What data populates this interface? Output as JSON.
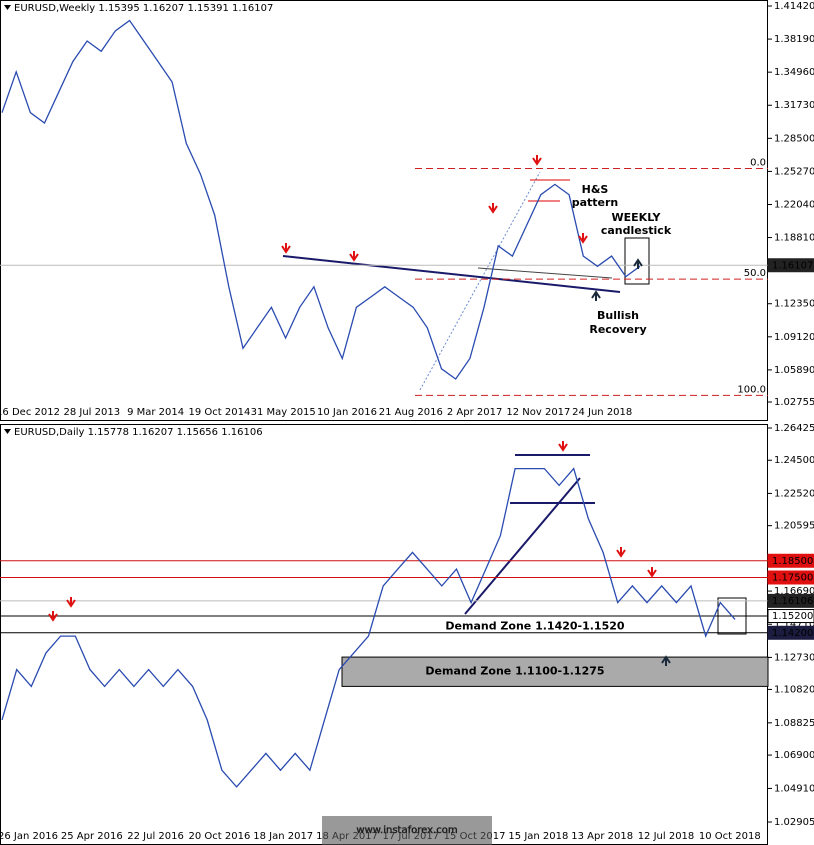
{
  "chart_data": [
    {
      "type": "line",
      "title": "EURUSD,Weekly  1.15395 1.16207 1.15391 1.16107",
      "series": [
        {
          "name": "EURUSD Weekly",
          "color": "#2a4bb0",
          "values": [
            1.31,
            1.35,
            1.31,
            1.3,
            1.33,
            1.36,
            1.38,
            1.37,
            1.39,
            1.4,
            1.38,
            1.36,
            1.34,
            1.28,
            1.25,
            1.21,
            1.14,
            1.08,
            1.1,
            1.12,
            1.09,
            1.12,
            1.14,
            1.1,
            1.07,
            1.12,
            1.13,
            1.14,
            1.13,
            1.12,
            1.1,
            1.06,
            1.05,
            1.07,
            1.12,
            1.18,
            1.17,
            1.2,
            1.23,
            1.24,
            1.23,
            1.17,
            1.16,
            1.17,
            1.15,
            1.16
          ]
        }
      ],
      "x_labels": [
        "16 Dec 2012",
        "28 Jul 2013",
        "9 Mar 2014",
        "19 Oct 2014",
        "31 May 2015",
        "10 Jan 2016",
        "21 Aug 2016",
        "2 Apr 2017",
        "12 Nov 2017",
        "24 Jun 2018"
      ],
      "ylim": [
        1.02755,
        1.4142
      ],
      "yticks": [
        {
          "value": 1.4142,
          "label": "1.41420"
        },
        {
          "value": 1.3819,
          "label": "1.38190"
        },
        {
          "value": 1.3496,
          "label": "1.34960"
        },
        {
          "value": 1.3173,
          "label": "1.31730"
        },
        {
          "value": 1.285,
          "label": "1.28500"
        },
        {
          "value": 1.2527,
          "label": "1.25270"
        },
        {
          "value": 1.2204,
          "label": "1.22040"
        },
        {
          "value": 1.1881,
          "label": "1.18810"
        },
        {
          "value": 1.1235,
          "label": "1.12350"
        },
        {
          "value": 1.0912,
          "label": "1.09120"
        },
        {
          "value": 1.0589,
          "label": "1.05890"
        },
        {
          "value": 1.02755,
          "label": "1.02755"
        }
      ],
      "levels": [
        {
          "value": 1.16107,
          "label": "1.16107",
          "color": "#222222"
        }
      ],
      "fib_levels": [
        {
          "price": 1.2555,
          "label": "0.0"
        },
        {
          "price": 1.1475,
          "label": "50.0"
        },
        {
          "price": 1.034,
          "label": "100.0"
        }
      ],
      "annotations": [
        "H&S",
        "pattern",
        "WEEKLY",
        "candlestick",
        "Bullish",
        "Recovery"
      ]
    },
    {
      "type": "line",
      "title": "EURUSD,Daily  1.15778 1.16207 1.15656 1.16106",
      "series": [
        {
          "name": "EURUSD Daily",
          "color": "#2a4bb0",
          "values": [
            1.09,
            1.12,
            1.11,
            1.13,
            1.14,
            1.14,
            1.12,
            1.11,
            1.12,
            1.11,
            1.12,
            1.11,
            1.12,
            1.11,
            1.09,
            1.06,
            1.05,
            1.06,
            1.07,
            1.06,
            1.07,
            1.06,
            1.09,
            1.12,
            1.13,
            1.14,
            1.17,
            1.18,
            1.19,
            1.18,
            1.17,
            1.18,
            1.16,
            1.18,
            1.2,
            1.24,
            1.24,
            1.24,
            1.23,
            1.24,
            1.21,
            1.19,
            1.16,
            1.17,
            1.16,
            1.17,
            1.16,
            1.17,
            1.14,
            1.16,
            1.15
          ]
        }
      ],
      "x_labels": [
        "26 Jan 2016",
        "25 Apr 2016",
        "22 Jul 2016",
        "20 Oct 2016",
        "18 Jan 2017",
        "18 Apr 2017",
        "17 Jul 2017",
        "15 Oct 2017",
        "15 Jan 2018",
        "13 Apr 2018",
        "12 Jul 2018",
        "10 Oct 2018"
      ],
      "ylim": [
        1.02905,
        1.26425
      ],
      "yticks": [
        {
          "value": 1.26425,
          "label": "1.26425"
        },
        {
          "value": 1.245,
          "label": "1.24500"
        },
        {
          "value": 1.2252,
          "label": "1.22520"
        },
        {
          "value": 1.20595,
          "label": "1.20595"
        },
        {
          "value": 1.1669,
          "label": "1.16690"
        },
        {
          "value": 1.1471,
          "label": "1.14710"
        },
        {
          "value": 1.1273,
          "label": "1.12730"
        },
        {
          "value": 1.1082,
          "label": "1.10820"
        },
        {
          "value": 1.08825,
          "label": "1.08825"
        },
        {
          "value": 1.069,
          "label": "1.06900"
        },
        {
          "value": 1.0491,
          "label": "1.04910"
        },
        {
          "value": 1.02905,
          "label": "1.02905"
        }
      ],
      "levels": [
        {
          "value": 1.185,
          "label": "1.18500",
          "color": "#e01010"
        },
        {
          "value": 1.175,
          "label": "1.17500",
          "color": "#e01010"
        },
        {
          "value": 1.16106,
          "label": "1.16106",
          "color": "#222222"
        },
        {
          "value": 1.152,
          "label": "1.15200",
          "color": "#ffffff"
        },
        {
          "value": 1.142,
          "label": "1.14200",
          "color": "#1c1c40"
        }
      ],
      "zones": [
        {
          "low": 1.142,
          "high": 1.152,
          "label": "Demand Zone 1.1420-1.1520"
        },
        {
          "low": 1.11,
          "high": 1.1275,
          "label": "Demand Zone 1.1100-1.1275"
        }
      ],
      "watermark": "www.instaforex.com"
    }
  ]
}
